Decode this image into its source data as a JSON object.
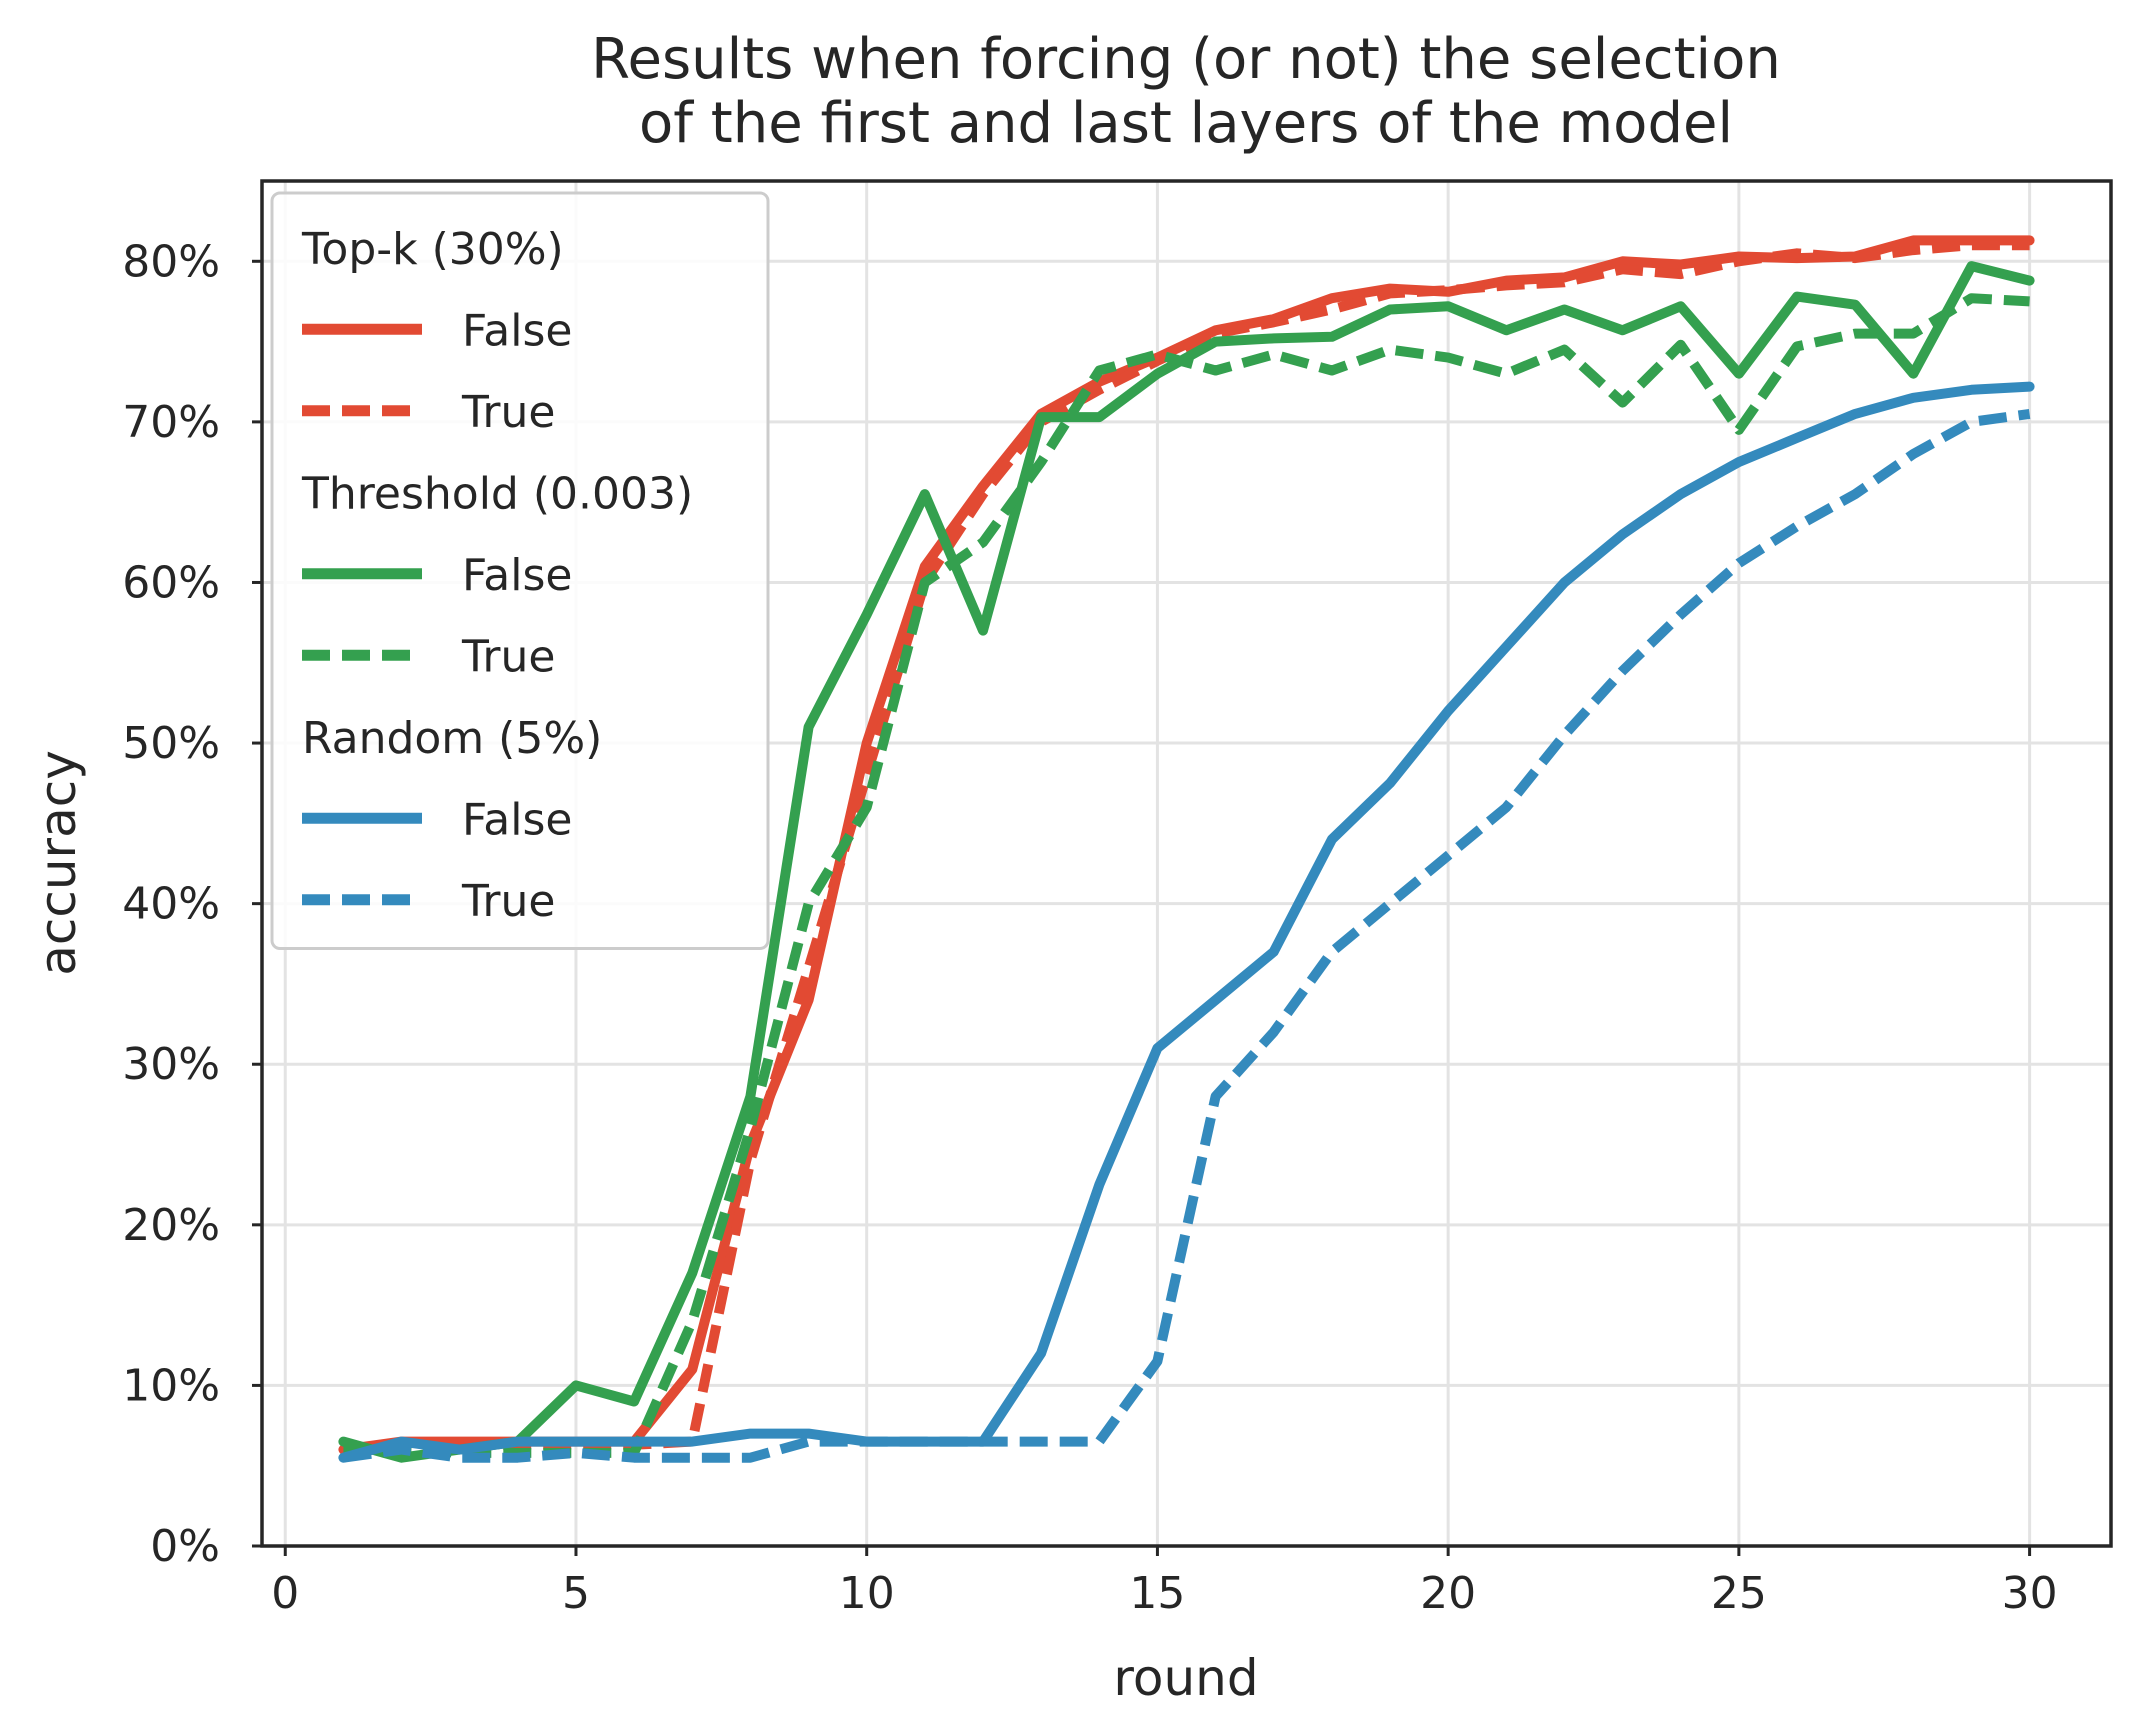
{
  "chart_data": {
    "type": "line",
    "title_lines": [
      "Results when forcing (or not) the selection",
      "of the first and last layers of the model"
    ],
    "xlabel": "round",
    "ylabel": "accuracy",
    "xlim": [
      -0.4,
      31.4
    ],
    "ylim": [
      0,
      0.85
    ],
    "xticks": [
      0,
      5,
      10,
      15,
      20,
      25,
      30
    ],
    "xtick_labels": [
      "0",
      "5",
      "10",
      "15",
      "20",
      "25",
      "30"
    ],
    "yticks": [
      0,
      0.1,
      0.2,
      0.3,
      0.4,
      0.5,
      0.6,
      0.7,
      0.8
    ],
    "ytick_labels": [
      "0%",
      "10%",
      "20%",
      "30%",
      "40%",
      "50%",
      "60%",
      "70%",
      "80%"
    ],
    "grid": true,
    "legend_position": "top-left",
    "x": [
      1,
      2,
      3,
      4,
      5,
      6,
      7,
      8,
      9,
      10,
      11,
      12,
      13,
      14,
      15,
      16,
      17,
      18,
      19,
      20,
      21,
      22,
      23,
      24,
      25,
      26,
      27,
      28,
      29,
      30
    ],
    "groups": [
      {
        "title": "Top-k (30%)",
        "color": "#e24a33",
        "series": [
          {
            "name": "False",
            "dash": false,
            "values": [
              0.06,
              0.065,
              0.065,
              0.065,
              0.065,
              0.065,
              0.11,
              0.25,
              0.34,
              0.5,
              0.61,
              0.66,
              0.705,
              0.725,
              0.74,
              0.757,
              0.764,
              0.777,
              0.783,
              0.781,
              0.788,
              0.79,
              0.8,
              0.798,
              0.803,
              0.802,
              0.803,
              0.813,
              0.813,
              0.813
            ]
          },
          {
            "name": "True",
            "dash": true,
            "values": [
              0.06,
              0.063,
              0.063,
              0.063,
              0.063,
              0.063,
              0.065,
              0.24,
              0.36,
              0.48,
              0.6,
              0.655,
              0.7,
              0.72,
              0.738,
              0.755,
              0.762,
              0.77,
              0.78,
              0.782,
              0.785,
              0.787,
              0.795,
              0.792,
              0.8,
              0.805,
              0.802,
              0.807,
              0.81,
              0.81
            ]
          }
        ]
      },
      {
        "title": "Threshold (0.003)",
        "color": "#34a04f",
        "series": [
          {
            "name": "False",
            "dash": false,
            "values": [
              0.065,
              0.055,
              0.06,
              0.065,
              0.1,
              0.09,
              0.17,
              0.28,
              0.51,
              0.58,
              0.655,
              0.57,
              0.703,
              0.703,
              0.73,
              0.75,
              0.752,
              0.753,
              0.77,
              0.772,
              0.757,
              0.77,
              0.757,
              0.772,
              0.73,
              0.778,
              0.773,
              0.73,
              0.797,
              0.788
            ]
          },
          {
            "name": "True",
            "dash": true,
            "values": [
              0.06,
              0.06,
              0.058,
              0.058,
              0.058,
              0.058,
              0.14,
              0.26,
              0.4,
              0.46,
              0.6,
              0.625,
              0.675,
              0.732,
              0.742,
              0.732,
              0.742,
              0.732,
              0.745,
              0.74,
              0.73,
              0.745,
              0.712,
              0.748,
              0.695,
              0.747,
              0.755,
              0.755,
              0.777,
              0.775
            ]
          }
        ]
      },
      {
        "title": "Random (5%)",
        "color": "#348abd",
        "series": [
          {
            "name": "False",
            "dash": false,
            "values": [
              0.055,
              0.065,
              0.06,
              0.065,
              0.065,
              0.065,
              0.065,
              0.07,
              0.07,
              0.065,
              0.065,
              0.065,
              0.12,
              0.225,
              0.31,
              0.34,
              0.37,
              0.44,
              0.475,
              0.52,
              0.56,
              0.6,
              0.63,
              0.655,
              0.675,
              0.69,
              0.705,
              0.715,
              0.72,
              0.722
            ]
          },
          {
            "name": "True",
            "dash": true,
            "values": [
              0.055,
              0.06,
              0.055,
              0.055,
              0.058,
              0.055,
              0.055,
              0.055,
              0.065,
              0.065,
              0.065,
              0.065,
              0.065,
              0.065,
              0.115,
              0.28,
              0.32,
              0.37,
              0.4,
              0.43,
              0.46,
              0.505,
              0.545,
              0.58,
              0.612,
              0.635,
              0.655,
              0.68,
              0.7,
              0.705
            ]
          }
        ]
      }
    ]
  }
}
